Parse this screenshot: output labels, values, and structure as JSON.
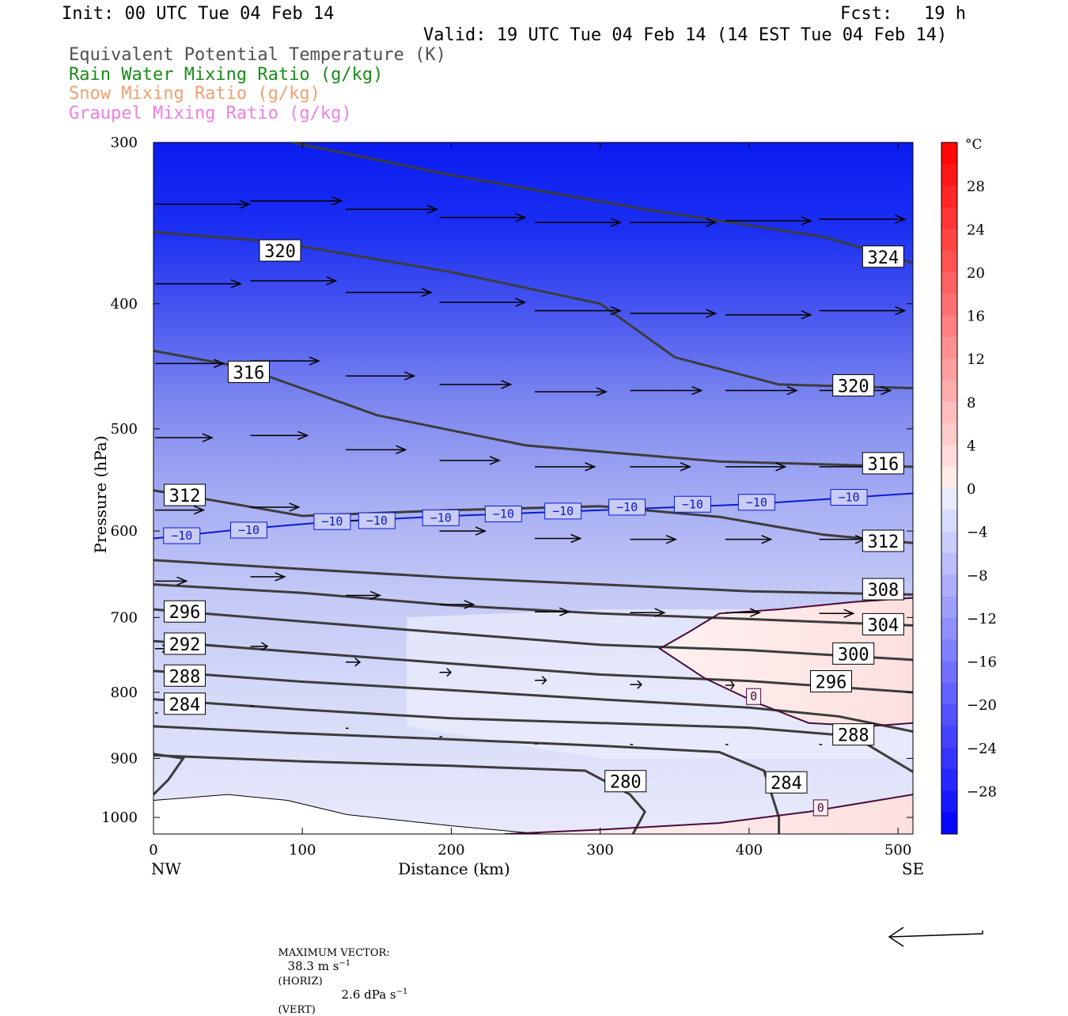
{
  "header": {
    "init": "Init: 00 UTC Tue 04 Feb 14",
    "fcst": "Fcst:   19 h",
    "valid": "Valid: 19 UTC Tue 04 Feb 14 (14 EST Tue 04 Feb 14)"
  },
  "legend_titles": [
    {
      "text": "Equivalent Potential Temperature (K)",
      "color": "#505050"
    },
    {
      "text": "Rain Water Mixing Ratio (g/kg)",
      "color": "#1a8c1a"
    },
    {
      "text": "Snow Mixing Ratio (g/kg)",
      "color": "#f0a070"
    },
    {
      "text": "Graupel Mixing Ratio (g/kg)",
      "color": "#f080e0"
    }
  ],
  "chart_data": {
    "type": "contour",
    "ylabel": "Pressure (hPa)",
    "xlabel": "Distance (km)",
    "x_start_label": "NW",
    "x_end_label": "SE",
    "xlim": [
      0,
      510
    ],
    "ylim": [
      1030,
      300
    ],
    "y_scale": "log",
    "x_ticks": [
      0,
      100,
      200,
      300,
      400,
      500
    ],
    "y_ticks": [
      300,
      400,
      500,
      600,
      700,
      800,
      900,
      1000
    ],
    "colorbar": {
      "unit": "°C",
      "ticks": [
        28,
        24,
        20,
        16,
        12,
        8,
        4,
        0,
        -4,
        -8,
        -12,
        -16,
        -20,
        -24,
        -28
      ],
      "min": -32,
      "max": 32
    },
    "theta_e_contours": [
      {
        "value": 324,
        "points": [
          [
            93,
            300
          ],
          [
            200,
            318
          ],
          [
            330,
            338
          ],
          [
            450,
            355
          ],
          [
            510,
            372
          ]
        ]
      },
      {
        "value": 320,
        "points": [
          [
            0,
            352
          ],
          [
            80,
            358
          ],
          [
            200,
            378
          ],
          [
            300,
            400
          ],
          [
            350,
            440
          ],
          [
            420,
            462
          ],
          [
            510,
            465
          ]
        ]
      },
      {
        "value": 316,
        "points": [
          [
            0,
            435
          ],
          [
            60,
            448
          ],
          [
            150,
            488
          ],
          [
            250,
            515
          ],
          [
            380,
            530
          ],
          [
            510,
            535
          ]
        ]
      },
      {
        "value": 312,
        "points": [
          [
            0,
            558
          ],
          [
            40,
            568
          ],
          [
            100,
            584
          ],
          [
            200,
            578
          ],
          [
            300,
            574
          ],
          [
            380,
            585
          ],
          [
            450,
            604
          ],
          [
            510,
            613
          ]
        ]
      },
      {
        "value": 308,
        "points": [
          [
            0,
            632
          ],
          [
            100,
            642
          ],
          [
            200,
            652
          ],
          [
            300,
            660
          ],
          [
            400,
            668
          ],
          [
            510,
            672
          ]
        ]
      },
      {
        "value": 304,
        "points": [
          [
            0,
            660
          ],
          [
            100,
            670
          ],
          [
            200,
            685
          ],
          [
            300,
            695
          ],
          [
            400,
            702
          ],
          [
            510,
            710
          ]
        ]
      },
      {
        "value": 300,
        "points": [
          [
            0,
            690
          ],
          [
            100,
            705
          ],
          [
            200,
            720
          ],
          [
            300,
            735
          ],
          [
            400,
            742
          ],
          [
            510,
            755
          ]
        ]
      },
      {
        "value": 296,
        "points": [
          [
            0,
            730
          ],
          [
            100,
            745
          ],
          [
            200,
            760
          ],
          [
            300,
            775
          ],
          [
            400,
            784
          ],
          [
            510,
            800
          ]
        ]
      },
      {
        "value": 292,
        "points": [
          [
            0,
            770
          ],
          [
            100,
            785
          ],
          [
            200,
            797
          ],
          [
            300,
            810
          ],
          [
            400,
            822
          ],
          [
            460,
            835
          ],
          [
            510,
            858
          ]
        ]
      },
      {
        "value": 288,
        "points": [
          [
            0,
            810
          ],
          [
            100,
            825
          ],
          [
            200,
            838
          ],
          [
            300,
            845
          ],
          [
            400,
            852
          ],
          [
            470,
            865
          ],
          [
            510,
            922
          ]
        ]
      },
      {
        "value": 284,
        "points": [
          [
            0,
            850
          ],
          [
            90,
            860
          ],
          [
            200,
            870
          ],
          [
            300,
            880
          ],
          [
            380,
            890
          ],
          [
            410,
            920
          ],
          [
            420,
            1000
          ],
          [
            420,
            1030
          ]
        ]
      },
      {
        "value": 280,
        "points": [
          [
            0,
            895
          ],
          [
            100,
            905
          ],
          [
            200,
            912
          ],
          [
            290,
            920
          ],
          [
            320,
            960
          ],
          [
            330,
            990
          ],
          [
            322,
            1030
          ]
        ]
      },
      {
        "value": 280,
        "points": [
          [
            0,
            960
          ],
          [
            10,
            935
          ],
          [
            20,
            900
          ],
          [
            0,
            893
          ]
        ]
      }
    ],
    "theta_e_labels": [
      {
        "text": "324",
        "x": 490,
        "p": 368
      },
      {
        "text": "320",
        "x": 85,
        "p": 364
      },
      {
        "text": "320",
        "x": 470,
        "p": 463
      },
      {
        "text": "316",
        "x": 64,
        "p": 452
      },
      {
        "text": "316",
        "x": 490,
        "p": 532
      },
      {
        "text": "312",
        "x": 21,
        "p": 563
      },
      {
        "text": "312",
        "x": 490,
        "p": 611
      },
      {
        "text": "308",
        "x": 490,
        "p": 666
      },
      {
        "text": "304",
        "x": 490,
        "p": 709
      },
      {
        "text": "300",
        "x": 470,
        "p": 747
      },
      {
        "text": "296",
        "x": 21,
        "p": 693
      },
      {
        "text": "296",
        "x": 455,
        "p": 785
      },
      {
        "text": "292",
        "x": 21,
        "p": 734
      },
      {
        "text": "288",
        "x": 21,
        "p": 777
      },
      {
        "text": "288",
        "x": 470,
        "p": 863
      },
      {
        "text": "284",
        "x": 21,
        "p": 817
      },
      {
        "text": "284",
        "x": 425,
        "p": 940
      },
      {
        "text": "280",
        "x": 317,
        "p": 938
      }
    ],
    "isotherm_minus10": {
      "value": -10,
      "points": [
        [
          0,
          608
        ],
        [
          60,
          598
        ],
        [
          120,
          590
        ],
        [
          200,
          584
        ],
        [
          300,
          578
        ],
        [
          400,
          572
        ],
        [
          510,
          561
        ]
      ]
    },
    "isotherm_minus10_labels": [
      {
        "text": "−10",
        "x": 19,
        "p": 605
      },
      {
        "text": "−10",
        "x": 64,
        "p": 599
      },
      {
        "text": "−10",
        "x": 120,
        "p": 590
      },
      {
        "text": "−10",
        "x": 150,
        "p": 589
      },
      {
        "text": "−10",
        "x": 193,
        "p": 586
      },
      {
        "text": "−10",
        "x": 235,
        "p": 582
      },
      {
        "text": "−10",
        "x": 275,
        "p": 579
      },
      {
        "text": "−10",
        "x": 318,
        "p": 575
      },
      {
        "text": "−10",
        "x": 362,
        "p": 572
      },
      {
        "text": "−10",
        "x": 405,
        "p": 570
      },
      {
        "text": "−10",
        "x": 467,
        "p": 565
      }
    ],
    "freezing_line_upper": {
      "value": 0,
      "points": [
        [
          510,
          676
        ],
        [
          470,
          681
        ],
        [
          420,
          690
        ],
        [
          380,
          695
        ],
        [
          360,
          718
        ],
        [
          340,
          740
        ],
        [
          370,
          780
        ],
        [
          405,
          815
        ],
        [
          440,
          845
        ],
        [
          480,
          850
        ],
        [
          510,
          845
        ]
      ]
    },
    "freezing_line_lower": {
      "value": 0,
      "points": [
        [
          236,
          1030
        ],
        [
          300,
          1022
        ],
        [
          380,
          1010
        ],
        [
          440,
          990
        ],
        [
          510,
          960
        ]
      ]
    },
    "freezing_labels": [
      {
        "text": "0",
        "x": 403,
        "p": 806
      },
      {
        "text": "0",
        "x": 448,
        "p": 983
      }
    ],
    "terrain": [
      [
        0,
        970
      ],
      [
        50,
        960
      ],
      [
        90,
        970
      ],
      [
        130,
        995
      ],
      [
        200,
        1015
      ],
      [
        260,
        1030
      ]
    ],
    "wind_vectors": [
      {
        "x": 0,
        "p": 335,
        "u": 33
      },
      {
        "x": 64,
        "p": 333,
        "u": 32
      },
      {
        "x": 128,
        "p": 338,
        "u": 32
      },
      {
        "x": 191,
        "p": 343,
        "u": 30
      },
      {
        "x": 255,
        "p": 346,
        "u": 30
      },
      {
        "x": 319,
        "p": 346,
        "u": 30
      },
      {
        "x": 383,
        "p": 345,
        "u": 30
      },
      {
        "x": 446,
        "p": 344,
        "u": 30
      },
      {
        "x": 510,
        "p": 344,
        "u": 30
      },
      {
        "x": 0,
        "p": 386,
        "u": 30
      },
      {
        "x": 64,
        "p": 384,
        "u": 30
      },
      {
        "x": 128,
        "p": 392,
        "u": 30
      },
      {
        "x": 191,
        "p": 399,
        "u": 30
      },
      {
        "x": 255,
        "p": 405,
        "u": 30
      },
      {
        "x": 319,
        "p": 407,
        "u": 30
      },
      {
        "x": 383,
        "p": 408,
        "u": 30
      },
      {
        "x": 446,
        "p": 405,
        "u": 30
      },
      {
        "x": 510,
        "p": 403,
        "u": 30
      },
      {
        "x": 0,
        "p": 445,
        "u": 24
      },
      {
        "x": 64,
        "p": 443,
        "u": 24
      },
      {
        "x": 128,
        "p": 455,
        "u": 24
      },
      {
        "x": 191,
        "p": 462,
        "u": 25
      },
      {
        "x": 255,
        "p": 468,
        "u": 25
      },
      {
        "x": 319,
        "p": 467,
        "u": 25
      },
      {
        "x": 383,
        "p": 467,
        "u": 25
      },
      {
        "x": 446,
        "p": 467,
        "u": 25
      },
      {
        "x": 510,
        "p": 466,
        "u": 25
      },
      {
        "x": 0,
        "p": 508,
        "u": 20
      },
      {
        "x": 64,
        "p": 506,
        "u": 20
      },
      {
        "x": 128,
        "p": 519,
        "u": 21
      },
      {
        "x": 191,
        "p": 529,
        "u": 21
      },
      {
        "x": 255,
        "p": 535,
        "u": 21
      },
      {
        "x": 319,
        "p": 535,
        "u": 21
      },
      {
        "x": 383,
        "p": 535,
        "u": 21
      },
      {
        "x": 446,
        "p": 535,
        "u": 21
      },
      {
        "x": 510,
        "p": 535,
        "u": 21
      },
      {
        "x": 0,
        "p": 578,
        "u": 17
      },
      {
        "x": 64,
        "p": 575,
        "u": 17
      },
      {
        "x": 128,
        "p": 589,
        "u": 16
      },
      {
        "x": 191,
        "p": 600,
        "u": 16
      },
      {
        "x": 255,
        "p": 608,
        "u": 16
      },
      {
        "x": 319,
        "p": 609,
        "u": 16
      },
      {
        "x": 383,
        "p": 609,
        "u": 16
      },
      {
        "x": 446,
        "p": 609,
        "u": 16
      },
      {
        "x": 510,
        "p": 608,
        "u": 16
      },
      {
        "x": 0,
        "p": 656,
        "u": 11
      },
      {
        "x": 64,
        "p": 651,
        "u": 12
      },
      {
        "x": 128,
        "p": 673,
        "u": 12
      },
      {
        "x": 191,
        "p": 684,
        "u": 12
      },
      {
        "x": 255,
        "p": 693,
        "u": 12
      },
      {
        "x": 319,
        "p": 694,
        "u": 12
      },
      {
        "x": 383,
        "p": 694,
        "u": 12
      },
      {
        "x": 446,
        "p": 695,
        "u": 12
      },
      {
        "x": 510,
        "p": 693,
        "u": 12
      },
      {
        "x": 0,
        "p": 740,
        "u": 4
      },
      {
        "x": 64,
        "p": 737,
        "u": 6
      },
      {
        "x": 128,
        "p": 758,
        "u": 5
      },
      {
        "x": 191,
        "p": 772,
        "u": 4
      },
      {
        "x": 255,
        "p": 783,
        "u": 4
      },
      {
        "x": 319,
        "p": 789,
        "u": 4
      },
      {
        "x": 383,
        "p": 790,
        "u": 3
      },
      {
        "x": 446,
        "p": 790,
        "u": 3
      },
      {
        "x": 510,
        "p": 790,
        "u": 2
      },
      {
        "x": 0,
        "p": 830,
        "u": 1
      },
      {
        "x": 64,
        "p": 820,
        "u": 1
      },
      {
        "x": 128,
        "p": 853,
        "u": 1
      },
      {
        "x": 191,
        "p": 866,
        "u": 1
      },
      {
        "x": 255,
        "p": 877,
        "u": 1
      },
      {
        "x": 319,
        "p": 878,
        "u": 1
      },
      {
        "x": 383,
        "p": 878,
        "u": 1
      },
      {
        "x": 446,
        "p": 878,
        "u": 1
      }
    ],
    "max_vector": {
      "label": "MAXIMUM VECTOR:",
      "horiz": "38.3 m s",
      "horiz_exp": "−1",
      "horiz_tag": "(HORIZ)",
      "vert": "2.6 dPa s",
      "vert_exp": "−1",
      "vert_tag": "(VERT)"
    }
  }
}
